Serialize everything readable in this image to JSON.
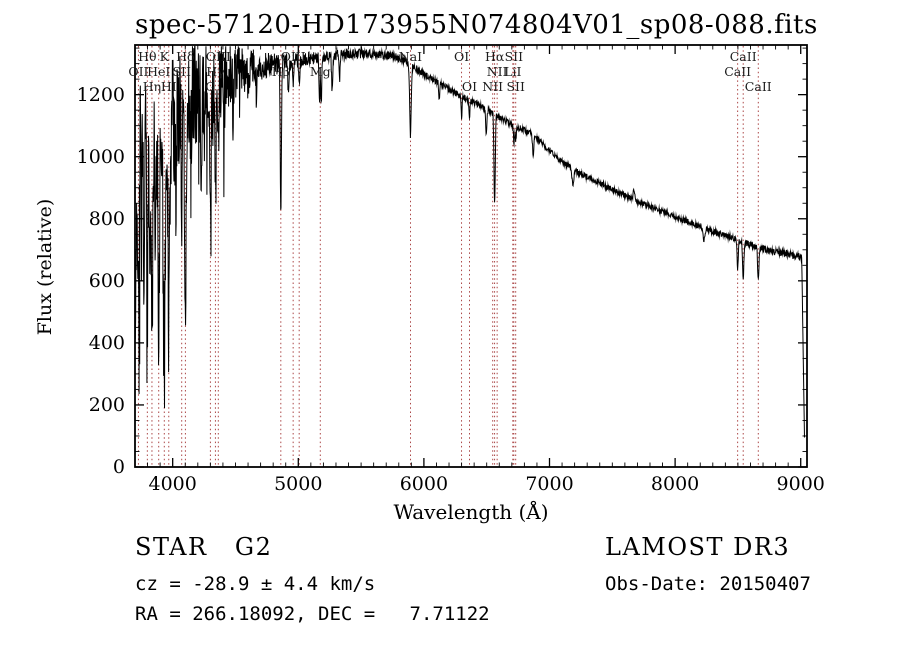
{
  "title": "spec-57120-HD173955N074804V01_sp08-088.fits",
  "footer": {
    "class_label": "STAR   G2",
    "survey": "LAMOST DR3",
    "cz": "cz = -28.9 ± 4.4 km/s",
    "obs_date": "Obs-Date: 20150407",
    "radec": "RA = 266.18092, DEC =   7.71122"
  },
  "chart_data": {
    "type": "line",
    "title": "spec-57120-HD173955N074804V01_sp08-088.fits",
    "xlabel": "Wavelength (Å)",
    "ylabel": "Flux (relative)",
    "xlim": [
      3700,
      9050
    ],
    "ylim": [
      0,
      1360
    ],
    "xticks": [
      4000,
      5000,
      6000,
      7000,
      8000,
      9000
    ],
    "yticks": [
      0,
      200,
      400,
      600,
      800,
      1000,
      1200
    ],
    "x_minor_step": 100,
    "y_minor_step": 50,
    "grid": false,
    "line_color": "#000000",
    "marker_color": "#a23232",
    "sample_range": [
      3700,
      9032
    ],
    "sample_step": 2.5,
    "continuum_anchors": [
      [
        3700,
        520
      ],
      [
        3712,
        800
      ],
      [
        3725,
        1000
      ],
      [
        3740,
        1060
      ],
      [
        3780,
        1060
      ],
      [
        3830,
        1040
      ],
      [
        3880,
        1060
      ],
      [
        3930,
        1080
      ],
      [
        3980,
        1100
      ],
      [
        4040,
        1130
      ],
      [
        4100,
        1160
      ],
      [
        4160,
        1200
      ],
      [
        4220,
        1210
      ],
      [
        4280,
        1225
      ],
      [
        4360,
        1240
      ],
      [
        4440,
        1265
      ],
      [
        4550,
        1280
      ],
      [
        4650,
        1290
      ],
      [
        4750,
        1295
      ],
      [
        4850,
        1300
      ],
      [
        4950,
        1305
      ],
      [
        5050,
        1315
      ],
      [
        5150,
        1320
      ],
      [
        5250,
        1325
      ],
      [
        5350,
        1330
      ],
      [
        5450,
        1332
      ],
      [
        5550,
        1332
      ],
      [
        5650,
        1330
      ],
      [
        5750,
        1325
      ],
      [
        5850,
        1310
      ],
      [
        5950,
        1280
      ],
      [
        6050,
        1255
      ],
      [
        6150,
        1230
      ],
      [
        6250,
        1205
      ],
      [
        6350,
        1185
      ],
      [
        6450,
        1165
      ],
      [
        6550,
        1140
      ],
      [
        6650,
        1115
      ],
      [
        6750,
        1095
      ],
      [
        6850,
        1075
      ],
      [
        6950,
        1040
      ],
      [
        7050,
        1000
      ],
      [
        7150,
        970
      ],
      [
        7250,
        945
      ],
      [
        7350,
        925
      ],
      [
        7450,
        905
      ],
      [
        7550,
        885
      ],
      [
        7650,
        865
      ],
      [
        7750,
        848
      ],
      [
        7850,
        832
      ],
      [
        7950,
        815
      ],
      [
        8050,
        798
      ],
      [
        8150,
        783
      ],
      [
        8250,
        768
      ],
      [
        8350,
        753
      ],
      [
        8450,
        740
      ],
      [
        8550,
        725
      ],
      [
        8650,
        710
      ],
      [
        8750,
        697
      ],
      [
        8850,
        690
      ],
      [
        8950,
        682
      ],
      [
        9010,
        672
      ],
      [
        9035,
        660
      ]
    ],
    "absorption_features": [
      {
        "wl": 3727,
        "depth": 420,
        "sigma": 5
      },
      {
        "wl": 3750,
        "depth": 300,
        "sigma": 4
      },
      {
        "wl": 3771,
        "depth": 350,
        "sigma": 4
      },
      {
        "wl": 3798,
        "depth": 520,
        "sigma": 5
      },
      {
        "wl": 3820,
        "depth": 250,
        "sigma": 4
      },
      {
        "wl": 3835,
        "depth": 620,
        "sigma": 5
      },
      {
        "wl": 3860,
        "depth": 250,
        "sigma": 4
      },
      {
        "wl": 3889,
        "depth": 680,
        "sigma": 5
      },
      {
        "wl": 3933,
        "depth": 740,
        "sigma": 6
      },
      {
        "wl": 3969,
        "depth": 640,
        "sigma": 6
      },
      {
        "wl": 4026,
        "depth": 220,
        "sigma": 4
      },
      {
        "wl": 4072,
        "depth": 300,
        "sigma": 4
      },
      {
        "wl": 4101,
        "depth": 600,
        "sigma": 6
      },
      {
        "wl": 4144,
        "depth": 220,
        "sigma": 4
      },
      {
        "wl": 4227,
        "depth": 300,
        "sigma": 4
      },
      {
        "wl": 4300,
        "depth": 380,
        "sigma": 7
      },
      {
        "wl": 4340,
        "depth": 430,
        "sigma": 5
      },
      {
        "wl": 4363,
        "depth": 200,
        "sigma": 4
      },
      {
        "wl": 4405,
        "depth": 180,
        "sigma": 4
      },
      {
        "wl": 4481,
        "depth": 140,
        "sigma": 4
      },
      {
        "wl": 4668,
        "depth": 120,
        "sigma": 4
      },
      {
        "wl": 4861,
        "depth": 470,
        "sigma": 5
      },
      {
        "wl": 4921,
        "depth": 100,
        "sigma": 4
      },
      {
        "wl": 4959,
        "depth": 80,
        "sigma": 4
      },
      {
        "wl": 5007,
        "depth": 90,
        "sigma": 4
      },
      {
        "wl": 5169,
        "depth": 150,
        "sigma": 4
      },
      {
        "wl": 5183,
        "depth": 160,
        "sigma": 4
      },
      {
        "wl": 5270,
        "depth": 110,
        "sigma": 5
      },
      {
        "wl": 5329,
        "depth": 80,
        "sigma": 4
      },
      {
        "wl": 5893,
        "depth": 230,
        "sigma": 6
      },
      {
        "wl": 6122,
        "depth": 60,
        "sigma": 4
      },
      {
        "wl": 6300,
        "depth": 70,
        "sigma": 4
      },
      {
        "wl": 6363,
        "depth": 50,
        "sigma": 4
      },
      {
        "wl": 6497,
        "depth": 80,
        "sigma": 5
      },
      {
        "wl": 6563,
        "depth": 290,
        "sigma": 5
      },
      {
        "wl": 6717,
        "depth": 55,
        "sigma": 4
      },
      {
        "wl": 6731,
        "depth": 50,
        "sigma": 4
      },
      {
        "wl": 6870,
        "depth": 60,
        "sigma": 5
      },
      {
        "wl": 7186,
        "depth": 50,
        "sigma": 8
      },
      {
        "wl": 7672,
        "depth": -35,
        "sigma": 6
      },
      {
        "wl": 8230,
        "depth": 40,
        "sigma": 8
      },
      {
        "wl": 8498,
        "depth": 95,
        "sigma": 5
      },
      {
        "wl": 8542,
        "depth": 120,
        "sigma": 5
      },
      {
        "wl": 8662,
        "depth": 105,
        "sigma": 5
      }
    ],
    "noise_profile": [
      [
        3700,
        240
      ],
      [
        3900,
        220
      ],
      [
        4100,
        190
      ],
      [
        4300,
        150
      ],
      [
        4500,
        90
      ],
      [
        4700,
        45
      ],
      [
        4900,
        28
      ],
      [
        5200,
        18
      ],
      [
        5600,
        14
      ],
      [
        6000,
        12
      ],
      [
        6500,
        10
      ],
      [
        7000,
        9
      ],
      [
        7500,
        9
      ],
      [
        8000,
        9
      ],
      [
        8500,
        10
      ],
      [
        8900,
        12
      ],
      [
        9035,
        14
      ]
    ],
    "forest_profile": [
      [
        3700,
        520
      ],
      [
        4000,
        470
      ],
      [
        4300,
        330
      ],
      [
        4650,
        80
      ]
    ],
    "edge_drop": {
      "start": 9008,
      "end": 9030,
      "floor": 95
    },
    "marker_wavelengths": [
      3727,
      3798,
      3835,
      3889,
      3933,
      3969,
      4072,
      4101,
      4300,
      4340,
      4363,
      4861,
      4959,
      5007,
      5175,
      5893,
      6300,
      6363,
      6548,
      6563,
      6583,
      6708,
      6716,
      6731,
      8498,
      8542,
      8662
    ],
    "line_labels": [
      {
        "label": "Hθ",
        "wl": 3798,
        "row": 1
      },
      {
        "label": "K",
        "wl": 3933,
        "row": 1
      },
      {
        "label": "Hδ",
        "wl": 4101,
        "row": 1
      },
      {
        "label": "OIII",
        "wl": 4363,
        "row": 1
      },
      {
        "label": "OIII",
        "wl": 4959,
        "row": 1
      },
      {
        "label": "NaI",
        "wl": 5893,
        "row": 1
      },
      {
        "label": "OI",
        "wl": 6300,
        "row": 1
      },
      {
        "label": "Hα",
        "wl": 6563,
        "row": 1
      },
      {
        "label": "SII",
        "wl": 6716,
        "row": 1
      },
      {
        "label": "CaII",
        "wl": 8542,
        "row": 1
      },
      {
        "label": "OII",
        "wl": 3727,
        "row": 2
      },
      {
        "label": "HeI",
        "wl": 3889,
        "row": 2
      },
      {
        "label": "SII",
        "wl": 4072,
        "row": 2
      },
      {
        "label": "Hγ",
        "wl": 4340,
        "row": 2
      },
      {
        "label": "Hβ",
        "wl": 4861,
        "row": 2
      },
      {
        "label": "Mg",
        "wl": 5175,
        "row": 2
      },
      {
        "label": "NII",
        "wl": 6583,
        "row": 2
      },
      {
        "label": "LiI",
        "wl": 6708,
        "row": 2
      },
      {
        "label": "CaII",
        "wl": 8498,
        "row": 2
      },
      {
        "label": "Hη",
        "wl": 3835,
        "row": 3
      },
      {
        "label": "HI",
        "wl": 3969,
        "row": 3
      },
      {
        "label": "G",
        "wl": 4300,
        "row": 3
      },
      {
        "label": "OI",
        "wl": 6363,
        "row": 3
      },
      {
        "label": "NII",
        "wl": 6548,
        "row": 3
      },
      {
        "label": "SII",
        "wl": 6731,
        "row": 3
      },
      {
        "label": "CaII",
        "wl": 8662,
        "row": 3
      }
    ]
  }
}
